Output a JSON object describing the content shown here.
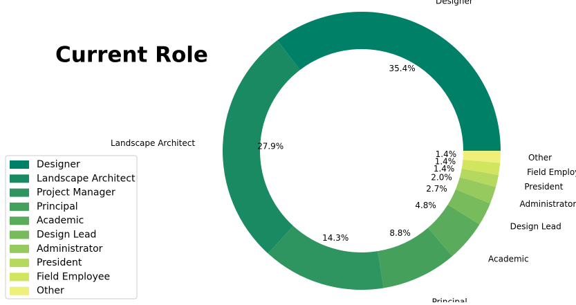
{
  "chart_data": {
    "type": "donut",
    "title": "Current Role",
    "categories": [
      "Designer",
      "Landscape Architect",
      "Project Manager",
      "Principal",
      "Academic",
      "Design Lead",
      "Administrator",
      "President",
      "Field Employee",
      "Other"
    ],
    "values": [
      35.4,
      27.9,
      14.3,
      8.8,
      4.8,
      2.7,
      2.0,
      1.4,
      1.4,
      1.4
    ],
    "value_labels": [
      "35.4%",
      "27.9%",
      "14.3%",
      "8.8%",
      "4.8%",
      "2.7%",
      "2.0%",
      "1.4%",
      "1.4%",
      "1.4%"
    ],
    "colors": [
      "#008066",
      "#1a8a63",
      "#2f9560",
      "#45a05c",
      "#5aab5c",
      "#78bb5c",
      "#96c95e",
      "#b5d85e",
      "#d2e55f",
      "#eef07a"
    ],
    "legend": "lower left"
  }
}
